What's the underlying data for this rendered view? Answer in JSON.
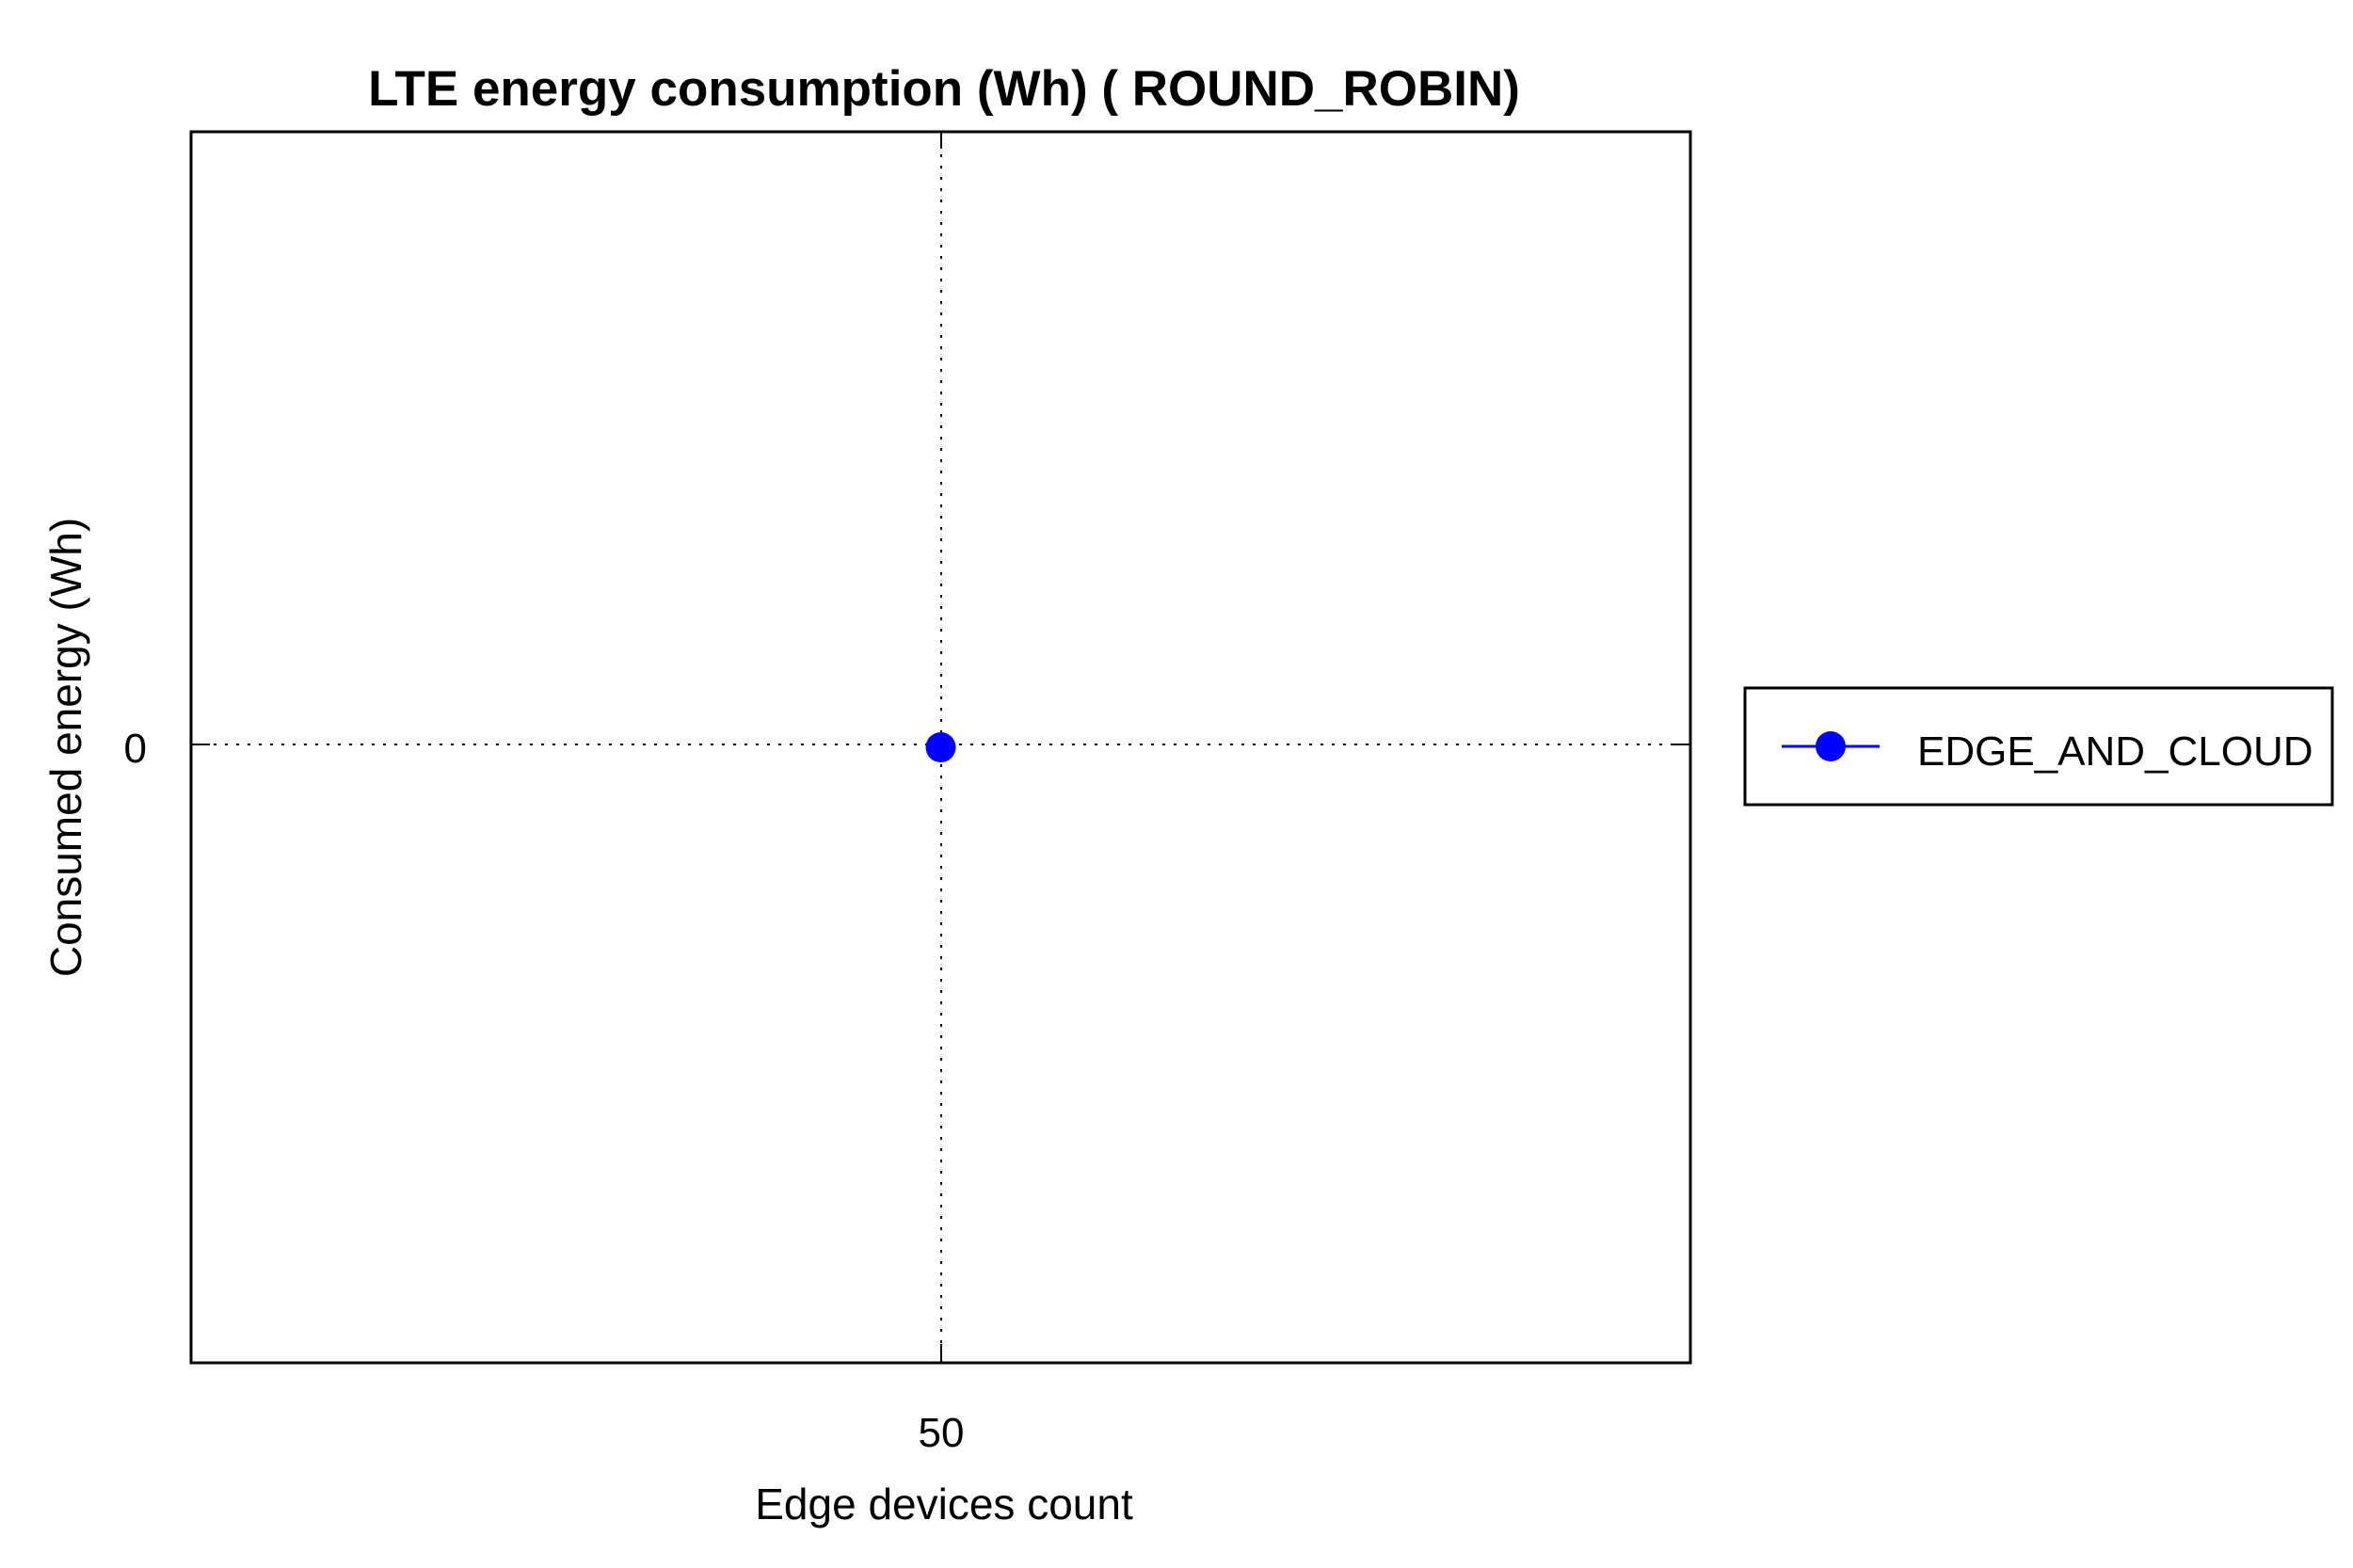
{
  "chart_data": {
    "type": "line",
    "title": "LTE energy consumption (Wh) ( ROUND_ROBIN)",
    "xlabel": "Edge devices count",
    "ylabel": "Consumed energy (Wh)",
    "x": [
      50
    ],
    "x_tick_labels": [
      "50"
    ],
    "y_tick_labels": [
      "0"
    ],
    "xlim": [
      49,
      51
    ],
    "ylim": [
      -1,
      1
    ],
    "grid": true,
    "legend_position": "right",
    "series": [
      {
        "name": "EDGE_AND_CLOUD",
        "x": [
          50
        ],
        "values": [
          0
        ],
        "color": "#0000ff",
        "marker": "circle"
      }
    ]
  }
}
